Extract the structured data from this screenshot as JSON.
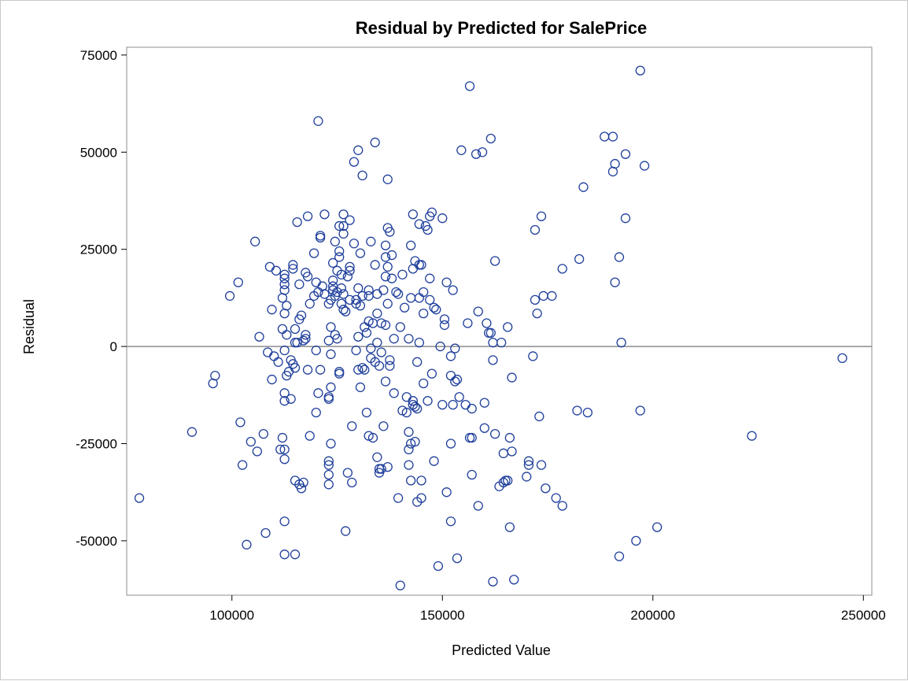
{
  "chart_data": {
    "type": "scatter",
    "title": "Residual by Predicted for SalePrice",
    "xlabel": "Predicted Value",
    "ylabel": "Residual",
    "xlim": [
      75000,
      252000
    ],
    "ylim": [
      -64000,
      77000
    ],
    "x_ticks": [
      100000,
      150000,
      200000,
      250000
    ],
    "y_ticks": [
      75000,
      50000,
      25000,
      0,
      -25000,
      -50000
    ],
    "x_tick_labels": [
      "100000",
      "150000",
      "200000",
      "250000"
    ],
    "y_tick_labels": [
      "75000",
      "50000",
      "25000",
      "0",
      "-25000",
      "-50000"
    ],
    "reference_line_y": 0,
    "grid": false,
    "marker": "open-circle",
    "colors": {
      "marker": "#1f3f9b",
      "reference_line": "#8c8c8c",
      "frame": "#8c8c8c"
    },
    "points": [
      [
        78000,
        -39000
      ],
      [
        90500,
        -22000
      ],
      [
        95500,
        -9500
      ],
      [
        96000,
        -7500
      ],
      [
        99500,
        13000
      ],
      [
        101500,
        16500
      ],
      [
        102000,
        -19500
      ],
      [
        102500,
        -30500
      ],
      [
        103500,
        -51000
      ],
      [
        104500,
        -24500
      ],
      [
        105500,
        27000
      ],
      [
        106000,
        -27000
      ],
      [
        106500,
        2500
      ],
      [
        107500,
        -22500
      ],
      [
        108000,
        -48000
      ],
      [
        108500,
        -1500
      ],
      [
        109000,
        20500
      ],
      [
        109500,
        -8500
      ],
      [
        109500,
        9500
      ],
      [
        110000,
        -2500
      ],
      [
        110500,
        19500
      ],
      [
        111000,
        -4000
      ],
      [
        111500,
        -26500
      ],
      [
        112000,
        -23500
      ],
      [
        112000,
        4500
      ],
      [
        112000,
        12500
      ],
      [
        112500,
        16000
      ],
      [
        112500,
        17500
      ],
      [
        112500,
        18500
      ],
      [
        112500,
        14500
      ],
      [
        112500,
        8500
      ],
      [
        112500,
        -1000
      ],
      [
        112500,
        -12000
      ],
      [
        112500,
        -14000
      ],
      [
        112500,
        -26500
      ],
      [
        112500,
        -29000
      ],
      [
        112500,
        -45000
      ],
      [
        112500,
        -53500
      ],
      [
        113000,
        10500
      ],
      [
        113000,
        3000
      ],
      [
        113000,
        -7500
      ],
      [
        113500,
        -6500
      ],
      [
        114000,
        -13500
      ],
      [
        114000,
        -3500
      ],
      [
        114500,
        21000
      ],
      [
        114500,
        20000
      ],
      [
        114500,
        -4500
      ],
      [
        115000,
        4500
      ],
      [
        115000,
        -5500
      ],
      [
        115000,
        1000
      ],
      [
        115000,
        -34500
      ],
      [
        115000,
        -53500
      ],
      [
        115500,
        32000
      ],
      [
        115500,
        1000
      ],
      [
        116000,
        -35500
      ],
      [
        116000,
        7000
      ],
      [
        116000,
        16000
      ],
      [
        116500,
        -36500
      ],
      [
        116500,
        8000
      ],
      [
        117000,
        1500
      ],
      [
        117000,
        -35000
      ],
      [
        117500,
        19000
      ],
      [
        117500,
        3000
      ],
      [
        117500,
        2000
      ],
      [
        118000,
        -6000
      ],
      [
        118000,
        18000
      ],
      [
        118000,
        33500
      ],
      [
        118500,
        -23000
      ],
      [
        118500,
        11000
      ],
      [
        119500,
        13000
      ],
      [
        119500,
        24000
      ],
      [
        120000,
        16500
      ],
      [
        120000,
        -1000
      ],
      [
        120000,
        -17000
      ],
      [
        120500,
        58000
      ],
      [
        120500,
        -12000
      ],
      [
        120500,
        14000
      ],
      [
        121000,
        28000
      ],
      [
        121000,
        28500
      ],
      [
        121000,
        -6000
      ],
      [
        121500,
        15500
      ],
      [
        122000,
        13500
      ],
      [
        122000,
        34000
      ],
      [
        123000,
        -13000
      ],
      [
        123000,
        -13500
      ],
      [
        123000,
        -29500
      ],
      [
        123000,
        -30500
      ],
      [
        123000,
        -33000
      ],
      [
        123000,
        -35500
      ],
      [
        123000,
        1500
      ],
      [
        123000,
        11000
      ],
      [
        123500,
        12000
      ],
      [
        123500,
        -2000
      ],
      [
        123500,
        -10500
      ],
      [
        123500,
        -25000
      ],
      [
        123500,
        5000
      ],
      [
        124000,
        14500
      ],
      [
        124000,
        15500
      ],
      [
        124000,
        21500
      ],
      [
        124000,
        17000
      ],
      [
        124500,
        3000
      ],
      [
        124500,
        27000
      ],
      [
        124500,
        13000
      ],
      [
        125000,
        2000
      ],
      [
        125000,
        14000
      ],
      [
        125000,
        19500
      ],
      [
        125500,
        23000
      ],
      [
        125500,
        31000
      ],
      [
        125500,
        24500
      ],
      [
        125500,
        -7000
      ],
      [
        125500,
        -6500
      ],
      [
        126000,
        11000
      ],
      [
        126000,
        15000
      ],
      [
        126000,
        18500
      ],
      [
        126500,
        34000
      ],
      [
        126500,
        13500
      ],
      [
        126500,
        9500
      ],
      [
        126500,
        31000
      ],
      [
        126500,
        29000
      ],
      [
        127000,
        -47500
      ],
      [
        127000,
        9000
      ],
      [
        127500,
        18000
      ],
      [
        127500,
        -32500
      ],
      [
        128000,
        12000
      ],
      [
        128000,
        20500
      ],
      [
        128000,
        19500
      ],
      [
        128000,
        32500
      ],
      [
        128500,
        -20500
      ],
      [
        128500,
        -35000
      ],
      [
        129000,
        26500
      ],
      [
        129000,
        47500
      ],
      [
        129500,
        12000
      ],
      [
        129500,
        11000
      ],
      [
        129500,
        -1000
      ],
      [
        130000,
        2500
      ],
      [
        130000,
        -6000
      ],
      [
        130000,
        50500
      ],
      [
        130000,
        15000
      ],
      [
        130500,
        -10500
      ],
      [
        130500,
        24000
      ],
      [
        130500,
        10500
      ],
      [
        131000,
        -5500
      ],
      [
        131000,
        13000
      ],
      [
        131000,
        44000
      ],
      [
        131500,
        -6000
      ],
      [
        131500,
        5000
      ],
      [
        132000,
        3500
      ],
      [
        132000,
        -17000
      ],
      [
        132500,
        14500
      ],
      [
        132500,
        13000
      ],
      [
        132500,
        6500
      ],
      [
        132500,
        -23000
      ],
      [
        133000,
        -500
      ],
      [
        133000,
        27000
      ],
      [
        133000,
        -3000
      ],
      [
        133500,
        6000
      ],
      [
        133500,
        -23500
      ],
      [
        134000,
        52500
      ],
      [
        134000,
        -4000
      ],
      [
        134000,
        21000
      ],
      [
        134500,
        13500
      ],
      [
        134500,
        8500
      ],
      [
        134500,
        1000
      ],
      [
        134500,
        -28500
      ],
      [
        135000,
        -31500
      ],
      [
        135000,
        -32500
      ],
      [
        135000,
        -5000
      ],
      [
        135500,
        6000
      ],
      [
        135500,
        -1500
      ],
      [
        135500,
        -31500
      ],
      [
        136000,
        14500
      ],
      [
        136000,
        -20500
      ],
      [
        136500,
        18000
      ],
      [
        136500,
        23000
      ],
      [
        136500,
        26000
      ],
      [
        136500,
        5500
      ],
      [
        136500,
        -9000
      ],
      [
        137000,
        43000
      ],
      [
        137000,
        30500
      ],
      [
        137000,
        20500
      ],
      [
        137000,
        -31000
      ],
      [
        137000,
        11000
      ],
      [
        137500,
        29500
      ],
      [
        137500,
        -5000
      ],
      [
        137500,
        -3500
      ],
      [
        138000,
        17500
      ],
      [
        138000,
        23500
      ],
      [
        138500,
        -12000
      ],
      [
        138500,
        2000
      ],
      [
        139000,
        14000
      ],
      [
        139500,
        -39000
      ],
      [
        139500,
        13500
      ],
      [
        140000,
        -61500
      ],
      [
        140000,
        5000
      ],
      [
        140500,
        -16500
      ],
      [
        140500,
        18500
      ],
      [
        141000,
        10000
      ],
      [
        141500,
        -17000
      ],
      [
        141500,
        -13000
      ],
      [
        142000,
        -22000
      ],
      [
        142000,
        -26500
      ],
      [
        142000,
        -30500
      ],
      [
        142000,
        2000
      ],
      [
        142500,
        -34500
      ],
      [
        142500,
        -25000
      ],
      [
        142500,
        26000
      ],
      [
        142500,
        12500
      ],
      [
        143000,
        34000
      ],
      [
        143000,
        -14000
      ],
      [
        143000,
        -15000
      ],
      [
        143000,
        20000
      ],
      [
        143500,
        -15500
      ],
      [
        143500,
        22000
      ],
      [
        143500,
        -24500
      ],
      [
        144000,
        -40000
      ],
      [
        144000,
        -16000
      ],
      [
        144000,
        -4000
      ],
      [
        144500,
        12500
      ],
      [
        144500,
        31500
      ],
      [
        144500,
        21000
      ],
      [
        144500,
        1000
      ],
      [
        145000,
        -34500
      ],
      [
        145000,
        21000
      ],
      [
        145000,
        -39000
      ],
      [
        145500,
        -9500
      ],
      [
        145500,
        14000
      ],
      [
        145500,
        8500
      ],
      [
        146000,
        31000
      ],
      [
        146500,
        30000
      ],
      [
        146500,
        -14000
      ],
      [
        147000,
        33500
      ],
      [
        147000,
        17500
      ],
      [
        147000,
        12000
      ],
      [
        147500,
        34500
      ],
      [
        147500,
        -7000
      ],
      [
        148000,
        -29500
      ],
      [
        148000,
        10000
      ],
      [
        148500,
        9500
      ],
      [
        149000,
        -56500
      ],
      [
        149500,
        0
      ],
      [
        150000,
        -15000
      ],
      [
        150000,
        33000
      ],
      [
        150500,
        5500
      ],
      [
        150500,
        7000
      ],
      [
        151000,
        -37500
      ],
      [
        151000,
        16500
      ],
      [
        152000,
        -2500
      ],
      [
        152000,
        -7500
      ],
      [
        152000,
        -25000
      ],
      [
        152000,
        -45000
      ],
      [
        152500,
        -15000
      ],
      [
        152500,
        14500
      ],
      [
        153000,
        -500
      ],
      [
        153000,
        -9000
      ],
      [
        153500,
        -54500
      ],
      [
        153500,
        -8500
      ],
      [
        154000,
        -13000
      ],
      [
        154500,
        50500
      ],
      [
        155500,
        -15000
      ],
      [
        156000,
        6000
      ],
      [
        156500,
        -23500
      ],
      [
        156500,
        67000
      ],
      [
        157000,
        -16000
      ],
      [
        157000,
        -23500
      ],
      [
        157000,
        -33000
      ],
      [
        158000,
        49500
      ],
      [
        158500,
        -41000
      ],
      [
        158500,
        9000
      ],
      [
        159500,
        50000
      ],
      [
        160000,
        -21000
      ],
      [
        160000,
        -14500
      ],
      [
        160500,
        6000
      ],
      [
        161000,
        3500
      ],
      [
        161500,
        3500
      ],
      [
        161500,
        53500
      ],
      [
        162000,
        -60500
      ],
      [
        162000,
        1000
      ],
      [
        162000,
        -3500
      ],
      [
        162500,
        -22500
      ],
      [
        162500,
        22000
      ],
      [
        163500,
        -36000
      ],
      [
        164000,
        1000
      ],
      [
        164500,
        -27500
      ],
      [
        164500,
        -35000
      ],
      [
        165000,
        -34500
      ],
      [
        165500,
        5000
      ],
      [
        165500,
        -34500
      ],
      [
        166000,
        -23500
      ],
      [
        166000,
        -46500
      ],
      [
        166500,
        -8000
      ],
      [
        166500,
        -27000
      ],
      [
        167000,
        -60000
      ],
      [
        170000,
        -33500
      ],
      [
        170500,
        -29500
      ],
      [
        170500,
        -30500
      ],
      [
        171500,
        -2500
      ],
      [
        172000,
        12000
      ],
      [
        172000,
        30000
      ],
      [
        172500,
        8500
      ],
      [
        173000,
        -18000
      ],
      [
        173500,
        33500
      ],
      [
        173500,
        -30500
      ],
      [
        174000,
        13000
      ],
      [
        174500,
        -36500
      ],
      [
        176000,
        13000
      ],
      [
        177000,
        -39000
      ],
      [
        178500,
        -41000
      ],
      [
        178500,
        20000
      ],
      [
        182000,
        -16500
      ],
      [
        182500,
        22500
      ],
      [
        183500,
        41000
      ],
      [
        184500,
        -17000
      ],
      [
        188500,
        54000
      ],
      [
        190500,
        45000
      ],
      [
        190500,
        54000
      ],
      [
        191000,
        16500
      ],
      [
        191000,
        47000
      ],
      [
        192000,
        23000
      ],
      [
        192000,
        -54000
      ],
      [
        192500,
        1000
      ],
      [
        193500,
        49500
      ],
      [
        193500,
        33000
      ],
      [
        196000,
        -50000
      ],
      [
        197000,
        -16500
      ],
      [
        197000,
        71000
      ],
      [
        198000,
        46500
      ],
      [
        201000,
        -46500
      ],
      [
        223500,
        -23000
      ],
      [
        245000,
        -3000
      ]
    ]
  }
}
